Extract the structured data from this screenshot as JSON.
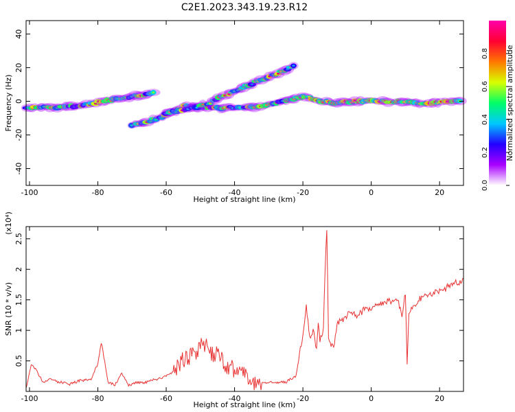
{
  "figure": {
    "title": "C2E1.2023.343.19.23.R12"
  },
  "chart_data": [
    {
      "type": "heatmap",
      "xlabel": "Height of straight line (km)",
      "ylabel": "Frequency (Hz)",
      "xlim": [
        -101,
        27
      ],
      "ylim": [
        -50,
        48
      ],
      "xticks": [
        -100,
        -80,
        -60,
        -40,
        -20,
        0,
        20
      ],
      "yticks": [
        -40,
        -20,
        0,
        20,
        40
      ],
      "colorbar": {
        "label": "Normalized spectral amplitude",
        "range": [
          0,
          1
        ],
        "ticks": [
          0.0,
          0.2,
          0.4,
          0.6,
          0.8
        ],
        "tick_labels": [
          "0.0",
          "0.2",
          "0.4",
          "0.6",
          "0.8"
        ],
        "colormap": [
          "#ffffff",
          "#a900ff",
          "#2200ff",
          "#00c8ff",
          "#00ff66",
          "#d8ff00",
          "#ff7700",
          "#ff0033",
          "#ff00aa"
        ]
      },
      "ridges": [
        {
          "x": [
            -101,
            -92,
            -85,
            -78,
            -70,
            -63
          ],
          "y": [
            -4,
            -3.5,
            -2.5,
            0,
            3,
            5
          ]
        },
        {
          "x": [
            -70,
            -62,
            -55,
            -45,
            -35,
            -25,
            -20,
            -15,
            -10,
            -5,
            5,
            15,
            27
          ],
          "y": [
            -14,
            -10,
            -3,
            -4,
            -3.5,
            0,
            3,
            0,
            -1,
            0,
            0,
            -1,
            0
          ]
        },
        {
          "x": [
            -60,
            -50,
            -40,
            -33,
            -28,
            -22
          ],
          "y": [
            -7,
            -3,
            6,
            12,
            16,
            22
          ]
        }
      ],
      "grid": false
    },
    {
      "type": "line",
      "xlabel": "Height of straight line (km)",
      "ylabel": "SNR (10 * v/v)",
      "y_scale_label": "(x10⁴)",
      "xlim": [
        -101,
        27
      ],
      "ylim": [
        0,
        2.7
      ],
      "xticks": [
        -100,
        -80,
        -60,
        -40,
        -20,
        0,
        20
      ],
      "yticks": [
        0.5,
        1.0,
        1.5,
        2.0,
        2.5
      ],
      "color": "#e83030",
      "series": [
        {
          "x": [
            -101,
            -99.5,
            -98,
            -96,
            -94,
            -91,
            -88,
            -85,
            -82,
            -80,
            -79,
            -78,
            -77,
            -75,
            -73,
            -71,
            -69,
            -66,
            -63,
            -60,
            -57,
            -54,
            -51,
            -48,
            -46,
            -44,
            -42,
            -40,
            -37,
            -34,
            -31,
            -28,
            -25,
            -22,
            -21,
            -20,
            -19,
            -18,
            -17,
            -16,
            -15.5,
            -15,
            -14,
            -13.5,
            -13,
            -12.5,
            -12,
            -11,
            -10,
            -8,
            -6,
            -4,
            -2,
            0,
            2,
            4,
            6,
            8,
            9,
            10,
            10.5,
            11,
            12,
            14,
            16,
            18,
            20,
            22,
            24,
            26,
            27
          ],
          "y": [
            0.05,
            0.45,
            0.35,
            0.15,
            0.2,
            0.15,
            0.12,
            0.18,
            0.2,
            0.45,
            0.8,
            0.5,
            0.15,
            0.1,
            0.3,
            0.1,
            0.15,
            0.15,
            0.2,
            0.25,
            0.35,
            0.55,
            0.7,
            0.75,
            0.6,
            0.55,
            0.45,
            0.35,
            0.25,
            0.15,
            0.15,
            0.15,
            0.15,
            0.25,
            0.6,
            0.9,
            1.4,
            0.9,
            1.0,
            0.7,
            1.1,
            0.8,
            1.05,
            2.0,
            2.65,
            0.9,
            0.8,
            0.7,
            1.1,
            1.2,
            1.3,
            1.25,
            1.35,
            1.35,
            1.4,
            1.45,
            1.5,
            1.45,
            1.25,
            1.6,
            0.45,
            1.3,
            1.35,
            1.5,
            1.55,
            1.6,
            1.65,
            1.7,
            1.75,
            1.8,
            1.85
          ]
        }
      ],
      "grid": false
    }
  ]
}
